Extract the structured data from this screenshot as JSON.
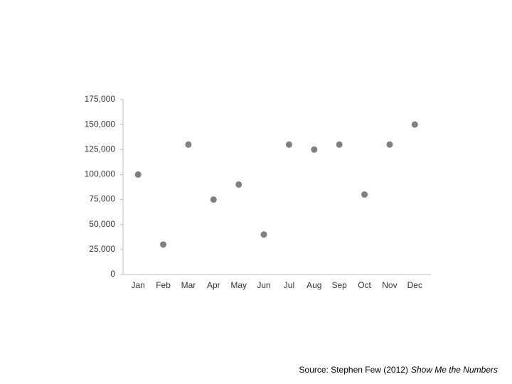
{
  "chart_data": {
    "type": "scatter",
    "categories": [
      "Jan",
      "Feb",
      "Mar",
      "Apr",
      "May",
      "Jun",
      "Jul",
      "Aug",
      "Sep",
      "Oct",
      "Nov",
      "Dec"
    ],
    "values": [
      100000,
      30000,
      130000,
      75000,
      90000,
      40000,
      130000,
      125000,
      130000,
      80000,
      130000,
      150000
    ],
    "color": "#808080",
    "ylim": [
      0,
      175000
    ],
    "yticks": [
      0,
      {
        "value": 25000,
        "label": "25,000"
      },
      {
        "value": 50000,
        "label": "50,000"
      },
      {
        "value": 75000,
        "label": "75,000"
      },
      {
        "value": 100000,
        "label": "100,000"
      },
      {
        "value": 125000,
        "label": "125,000"
      },
      {
        "value": 150000,
        "label": "150,000"
      },
      {
        "value": 175000,
        "label": "175,000"
      }
    ],
    "grid": false,
    "source": "Source: Stephen Few (2012)",
    "source_title": "Show Me the Numbers"
  }
}
